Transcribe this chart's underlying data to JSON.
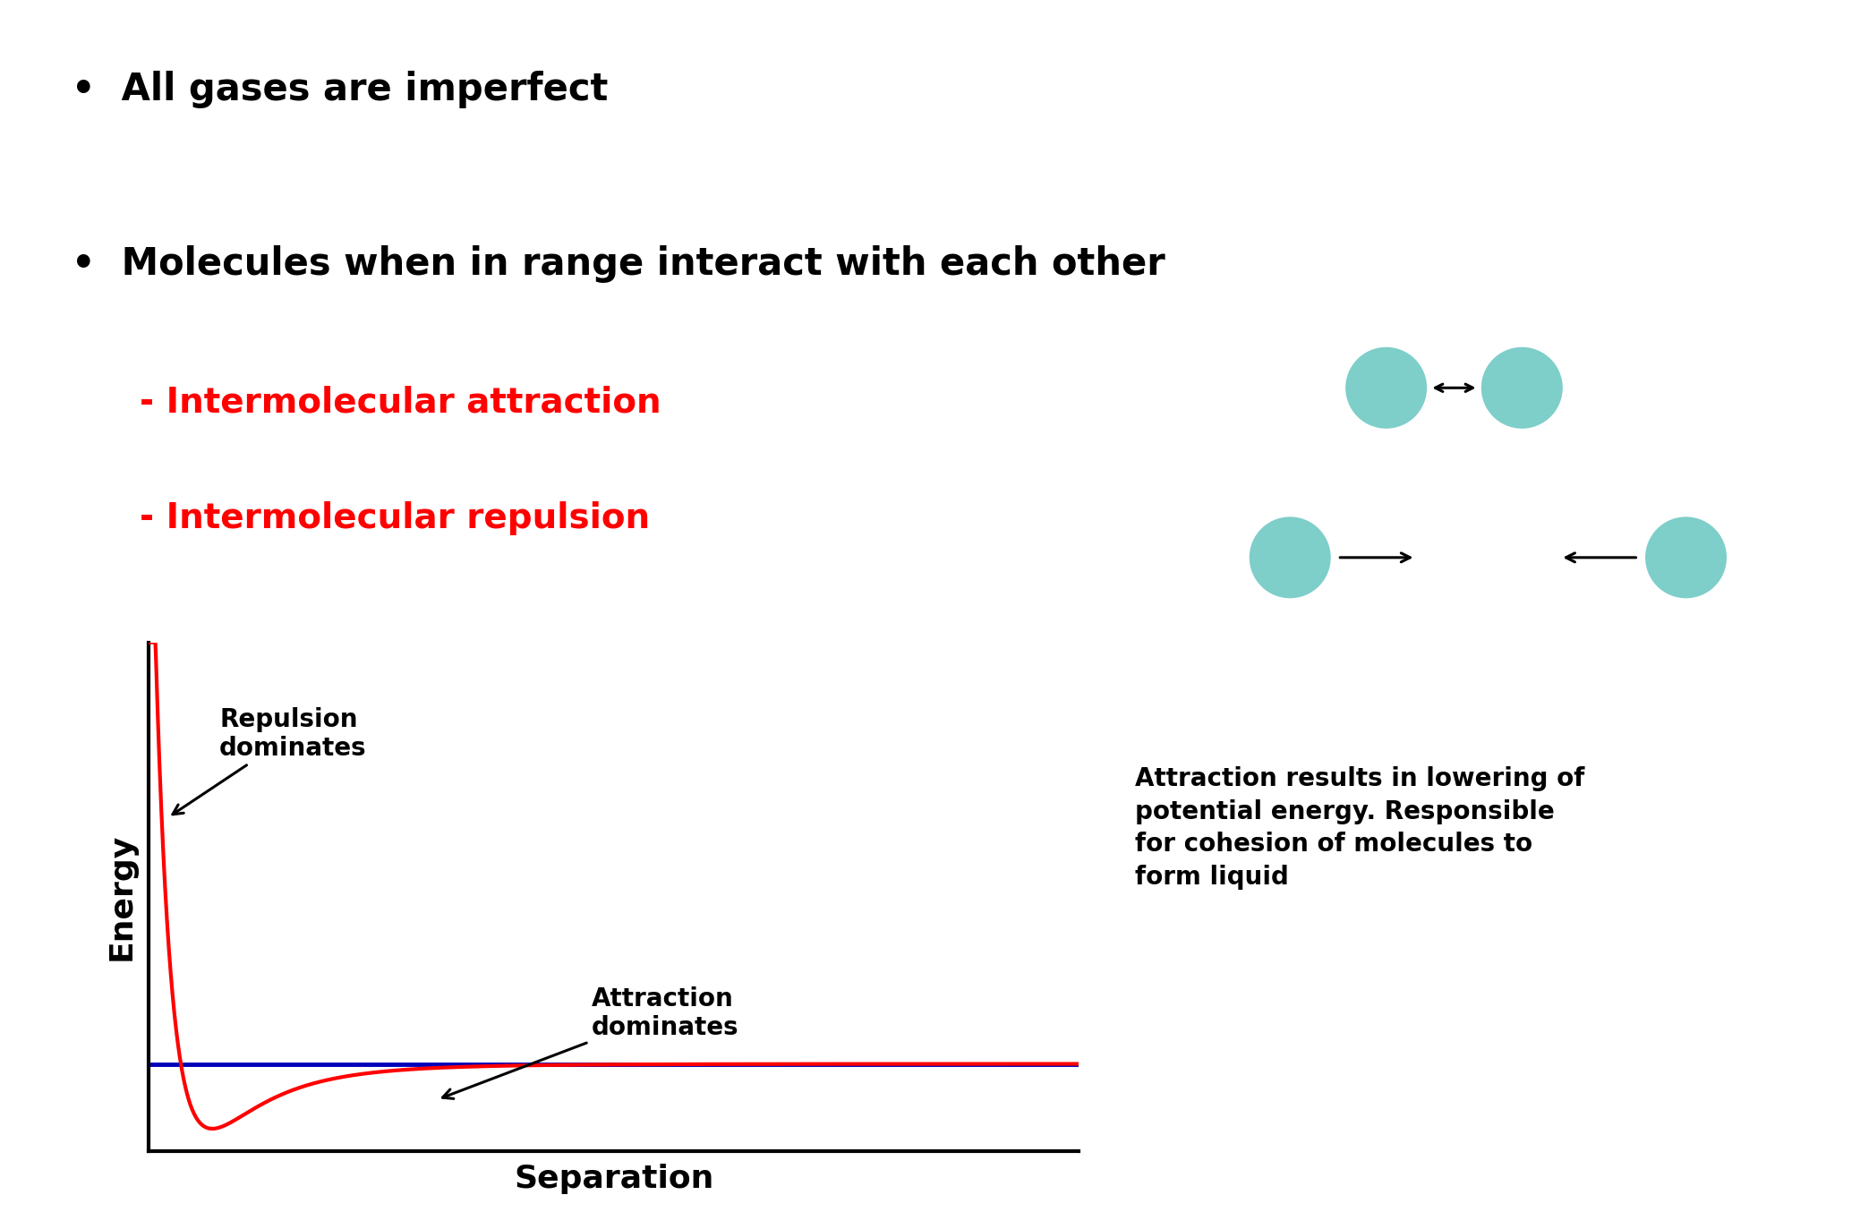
{
  "bullet1": "All gases are imperfect",
  "bullet2": "Molecules when in range interact with each other",
  "sub1": "- Intermolecular attraction",
  "sub2": "- Intermolecular repulsion",
  "xlabel": "Separation",
  "ylabel": "Energy",
  "repulsion_label": "Repulsion\ndominates",
  "attraction_label": "Attraction\ndominates",
  "attraction_note": "Attraction results in lowering of\npotential energy. Responsible\nfor cohesion of molecules to\nform liquid",
  "bg_color": "#ffffff",
  "text_color": "#000000",
  "red_color": "#ff0000",
  "blue_color": "#0000bb",
  "molecule_color": "#7ececa",
  "bullet_fontsize": 30,
  "sub_fontsize": 28,
  "graph_label_fontsize": 22,
  "annot_fontsize": 20,
  "graph_annot_fontsize": 18
}
